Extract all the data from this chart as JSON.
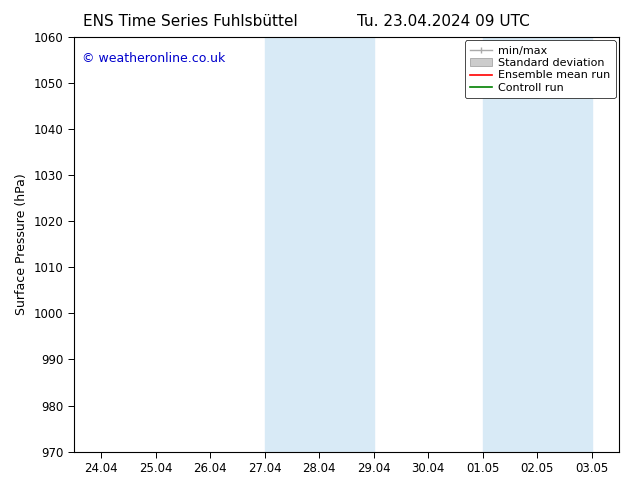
{
  "title_left": "ENS Time Series Fuhlsbüttel",
  "title_right": "Tu. 23.04.2024 09 UTC",
  "ylabel": "Surface Pressure (hPa)",
  "ylim": [
    970,
    1060
  ],
  "yticks": [
    970,
    980,
    990,
    1000,
    1010,
    1020,
    1030,
    1040,
    1050,
    1060
  ],
  "xtick_labels": [
    "24.04",
    "25.04",
    "26.04",
    "27.04",
    "28.04",
    "29.04",
    "30.04",
    "01.05",
    "02.05",
    "03.05"
  ],
  "watermark": "© weatheronline.co.uk",
  "watermark_color": "#0000cc",
  "background_color": "#ffffff",
  "shaded_regions": [
    {
      "xstart": 3,
      "xend": 5,
      "color": "#d8eaf6"
    },
    {
      "xstart": 7,
      "xend": 9,
      "color": "#d8eaf6"
    }
  ],
  "shade_alpha": 1.0,
  "title_fontsize": 11,
  "axis_fontsize": 9,
  "tick_fontsize": 8.5,
  "legend_fontsize": 8
}
